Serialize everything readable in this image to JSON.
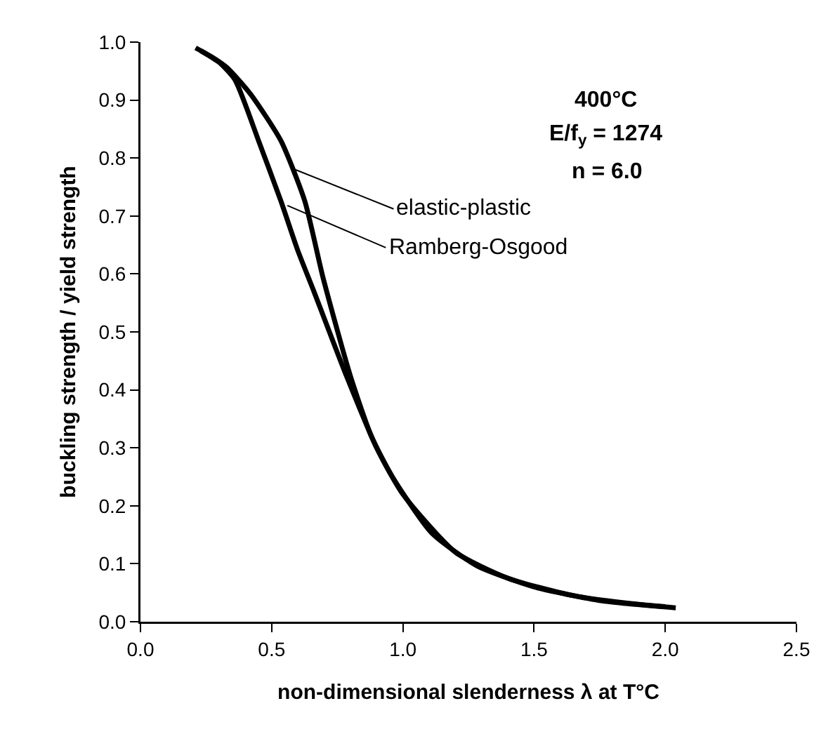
{
  "chart_data": {
    "type": "line",
    "xlabel": "non-dimensional slenderness λ at T°C",
    "ylabel": "buckling strength / yield strength",
    "xlim": [
      0,
      2.5
    ],
    "xticks": [
      {
        "value": 0,
        "label": "0.0"
      },
      0.5,
      {
        "value": 1,
        "label": "1.0"
      },
      1.5,
      {
        "value": 2,
        "label": "2.0"
      },
      2.5
    ],
    "ylim": [
      0,
      1
    ],
    "yticks": [
      {
        "value": 0,
        "label": "0.0"
      },
      0.1,
      0.2,
      0.3,
      0.4,
      0.5,
      0.6,
      0.7,
      0.8,
      0.9,
      {
        "value": 1,
        "label": "1.0"
      }
    ],
    "grid": false,
    "marker": "none",
    "line_style": "solid",
    "series": [
      {
        "color": "#000000",
        "x": [
          0.21,
          0.27,
          0.33,
          0.42,
          0.535,
          0.626,
          0.695,
          0.8,
          0.88,
          0.96,
          1.11,
          1.28,
          1.5,
          1.76,
          2.04
        ],
        "values": [
          0.99,
          0.975,
          0.956,
          0.91,
          0.83,
          0.726,
          0.595,
          0.424,
          0.32,
          0.25,
          0.153,
          0.097,
          0.06,
          0.036,
          0.024
        ]
      },
      {
        "color": "#000000",
        "x": [
          0.23,
          0.3,
          0.36,
          0.45,
          0.535,
          0.6,
          0.66,
          0.72,
          0.785,
          0.9,
          1.0,
          1.2,
          1.4,
          1.65,
          1.9,
          2.0
        ],
        "values": [
          0.985,
          0.965,
          0.935,
          0.83,
          0.726,
          0.64,
          0.571,
          0.5,
          0.424,
          0.3,
          0.22,
          0.12,
          0.075,
          0.045,
          0.03,
          0.026
        ]
      }
    ],
    "annotations": [
      "400°C",
      "E/f$_{y}$ = 1274",
      "n = 6.0",
      {
        "text": "elastic-plastic",
        "x": 0.59,
        "y": 0.78
      },
      {
        "text": "Ramberg-Osgood",
        "x": 0.56,
        "y": 0.718
      }
    ]
  }
}
